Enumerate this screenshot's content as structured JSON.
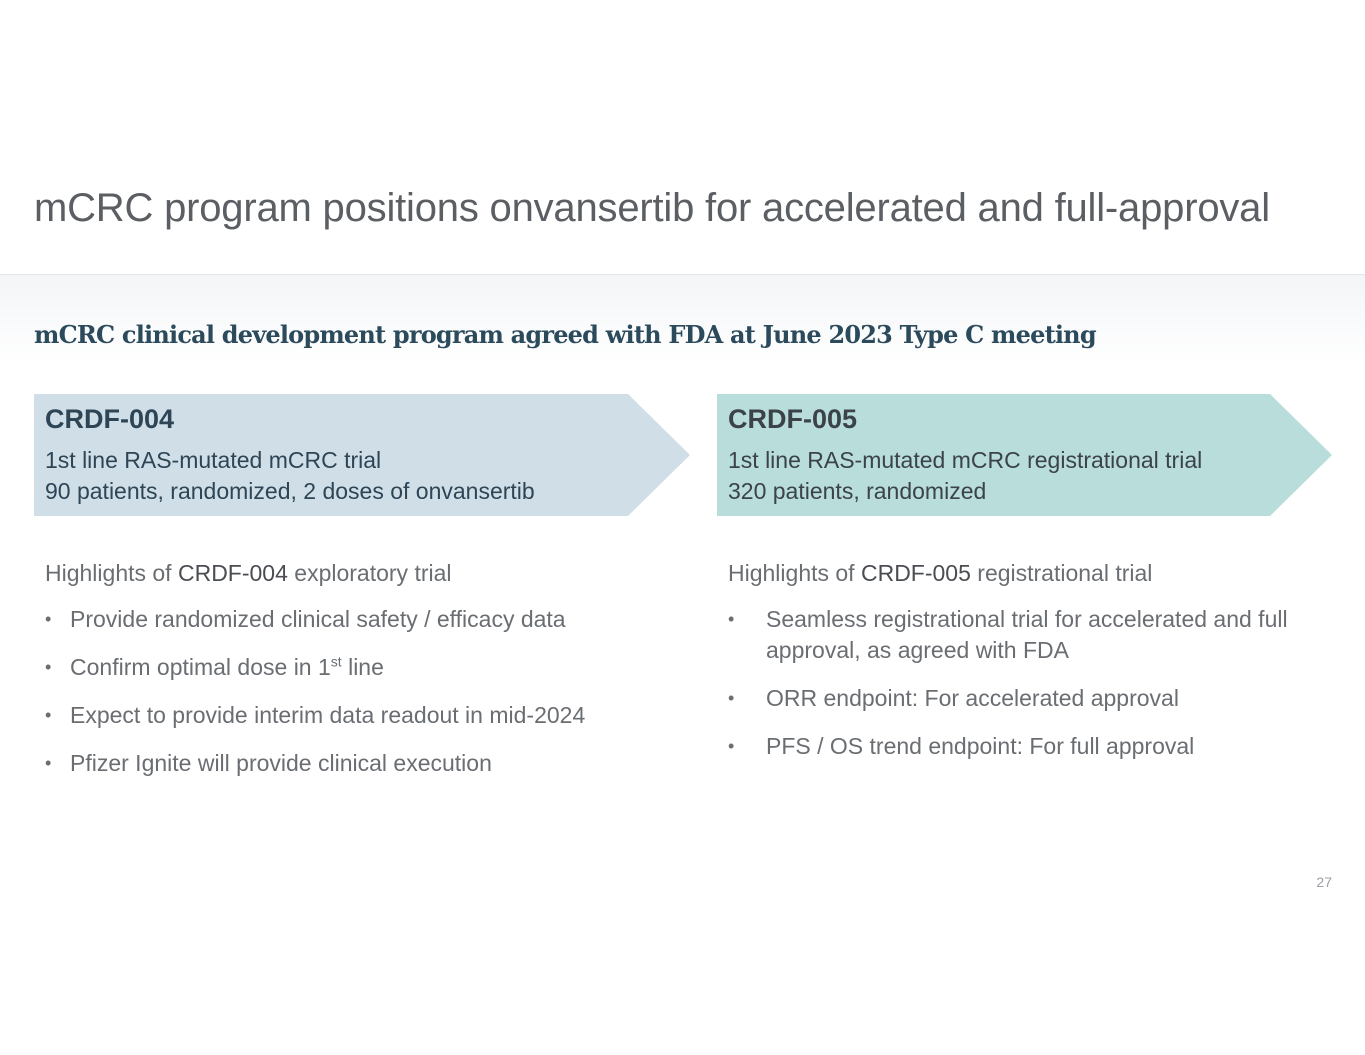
{
  "slide": {
    "title": "mCRC program positions onvansertib for accelerated and full-approval",
    "subtitle": "mCRC clinical development program agreed with FDA at June 2023 Type C meeting",
    "page_number": "27"
  },
  "trials": [
    {
      "code": "CRDF-004",
      "line1": "1st line RAS-mutated mCRC trial",
      "line2": "90 patients, randomized, 2 doses of onvansertib",
      "color": "#d0dfe7",
      "highlights": {
        "prefix": "Highlights of ",
        "code": "CRDF-004",
        "suffix": " exploratory trial",
        "bullets": [
          {
            "text": "Provide randomized clinical safety / efficacy data"
          },
          {
            "text": "Confirm optimal dose in 1",
            "sup": "st",
            "after": " line"
          },
          {
            "text": "Expect to provide interim data readout in mid-2024"
          },
          {
            "text": "Pfizer Ignite will provide clinical execution"
          }
        ]
      }
    },
    {
      "code": "CRDF-005",
      "line1": "1st line RAS-mutated mCRC registrational trial",
      "line2": "320 patients, randomized",
      "color": "#b8dddb",
      "highlights": {
        "prefix": "Highlights of ",
        "code": "CRDF-005",
        "suffix": " registrational trial",
        "bullets": [
          {
            "text": "Seamless registrational trial for accelerated and full approval, as agreed with FDA"
          },
          {
            "text": "ORR endpoint: For accelerated approval"
          },
          {
            "text": "PFS / OS trend endpoint: For full approval"
          }
        ]
      }
    }
  ],
  "bullet_glyph": "•"
}
